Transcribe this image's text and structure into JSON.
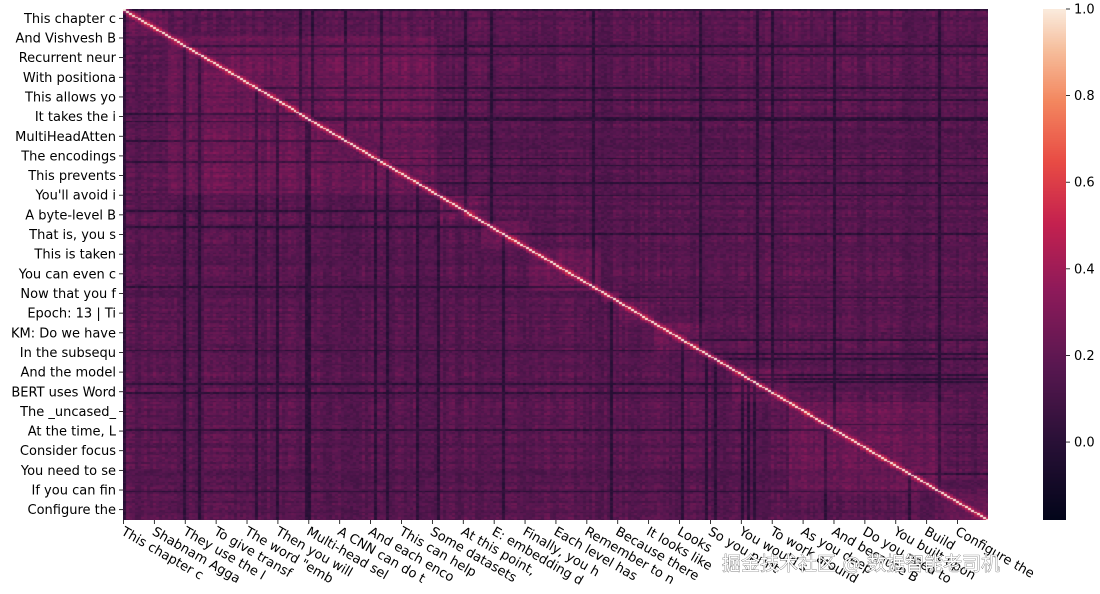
{
  "chart_data": {
    "type": "heatmap",
    "title": "",
    "xlabel": "",
    "ylabel": "",
    "y_tick_labels": [
      "This chapter c",
      "And Vishvesh B",
      "Recurrent neur",
      "With positiona",
      "This allows yo",
      "It takes the i",
      "MultiHeadAtten",
      "The encodings",
      "This prevents",
      "You'll avoid i",
      "A byte-level B",
      "That is, you s",
      "This is taken",
      "You can even c",
      "Now that you f",
      "Epoch: 13 | Ti",
      "KM: Do we have",
      "In the subsequ",
      "And the model",
      "BERT uses Word",
      "The _uncased_",
      "At the time, L",
      "Consider focus",
      "You need to se",
      "If you can fin",
      "Configure the"
    ],
    "x_tick_labels": [
      "This chapter c",
      "Shabnam Agga",
      "They use the l",
      "To give transf",
      "The word \"emb",
      "Then you will",
      "Multi-head sel",
      "A CNN can do t",
      "And each enco",
      "This can help",
      "Some datasets",
      "At this point,",
      "E: embedding d",
      "Finally, you h",
      "Each level has",
      "Remember to n",
      "Because there",
      "It looks like",
      "Looks",
      "So you print",
      "You would s",
      "To work around",
      "As you deep",
      "And because B",
      "Do you need to",
      "You built upon",
      "Build",
      "Configure the"
    ],
    "matrix_size": 290,
    "diagonal_value": 1.0,
    "value_range": [
      -0.18,
      1.0
    ],
    "off_diagonal_typical_range": [
      0.0,
      0.35
    ],
    "colormap": "rocket",
    "colorbar": {
      "ticks": [
        1.0,
        0.8,
        0.6,
        0.4,
        0.2,
        0.0
      ],
      "tick_labels": [
        "1.0",
        "0.8",
        "0.6",
        "0.4",
        "0.2",
        "0.0"
      ]
    },
    "grid": false,
    "legend": "colorbar-right"
  },
  "watermark": "掘金技术社区 @ 数据智能老司机",
  "colors": {
    "low": "#03051a",
    "mid": "#a11a5b",
    "high": "#faebdd",
    "background": "#ffffff"
  }
}
